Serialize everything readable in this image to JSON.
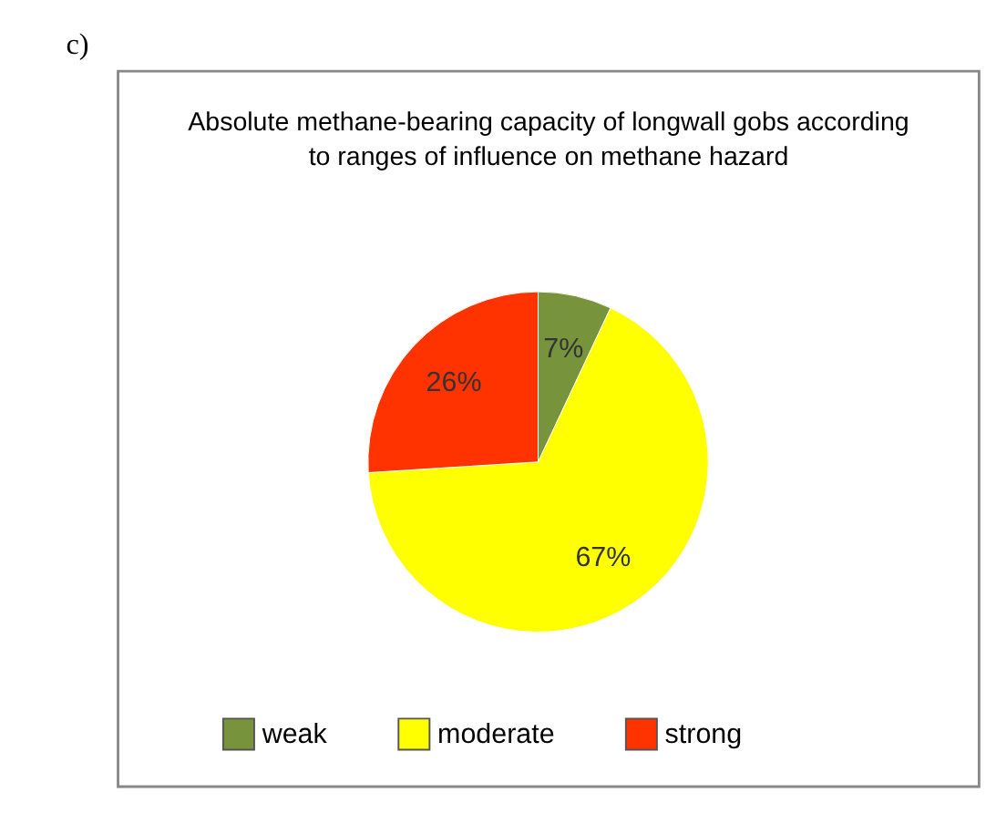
{
  "chart_data": {
    "type": "pie",
    "title": "Absolute methane-bearing capacity of longwall gobs according to ranges of influence on methane hazard",
    "categories": [
      "weak",
      "moderate",
      "strong"
    ],
    "values": [
      7,
      67,
      26
    ],
    "colors": [
      "#77933c",
      "#ffff00",
      "#ff3300"
    ],
    "value_labels": [
      "7%",
      "67%",
      "26%"
    ],
    "legend": "bottom",
    "annotations": [
      "c)"
    ]
  }
}
